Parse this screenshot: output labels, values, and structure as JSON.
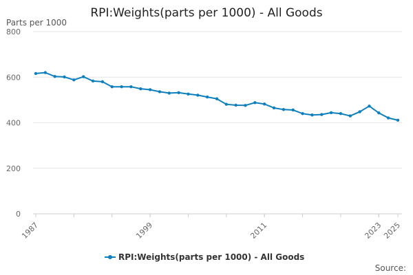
{
  "chart_data": {
    "type": "line",
    "title": "RPI:Weights(parts per 1000) - All Goods",
    "xlabel": "",
    "ylabel": "Parts per 1000",
    "ylim": [
      0,
      800
    ],
    "yticks": [
      0,
      200,
      400,
      600,
      800
    ],
    "x": [
      1987,
      1988,
      1989,
      1990,
      1991,
      1992,
      1993,
      1994,
      1995,
      1996,
      1997,
      1998,
      1999,
      2000,
      2001,
      2002,
      2003,
      2004,
      2005,
      2006,
      2007,
      2008,
      2009,
      2010,
      2011,
      2012,
      2013,
      2014,
      2015,
      2016,
      2017,
      2018,
      2019,
      2020,
      2021,
      2022,
      2023,
      2024,
      2025
    ],
    "xticks": [
      1987,
      1999,
      2011,
      2023,
      2025
    ],
    "series": [
      {
        "name": "RPI:Weights(parts per 1000) - All Goods",
        "color": "#0d7fbd",
        "values": [
          616,
          620,
          603,
          601,
          588,
          602,
          583,
          580,
          558,
          558,
          558,
          549,
          545,
          536,
          530,
          532,
          526,
          521,
          513,
          505,
          481,
          477,
          476,
          488,
          482,
          465,
          458,
          456,
          440,
          434,
          436,
          444,
          440,
          430,
          448,
          473,
          443,
          421,
          411
        ]
      }
    ],
    "legend": "bottom",
    "grid": true
  },
  "footer": {
    "source": "Source:"
  }
}
